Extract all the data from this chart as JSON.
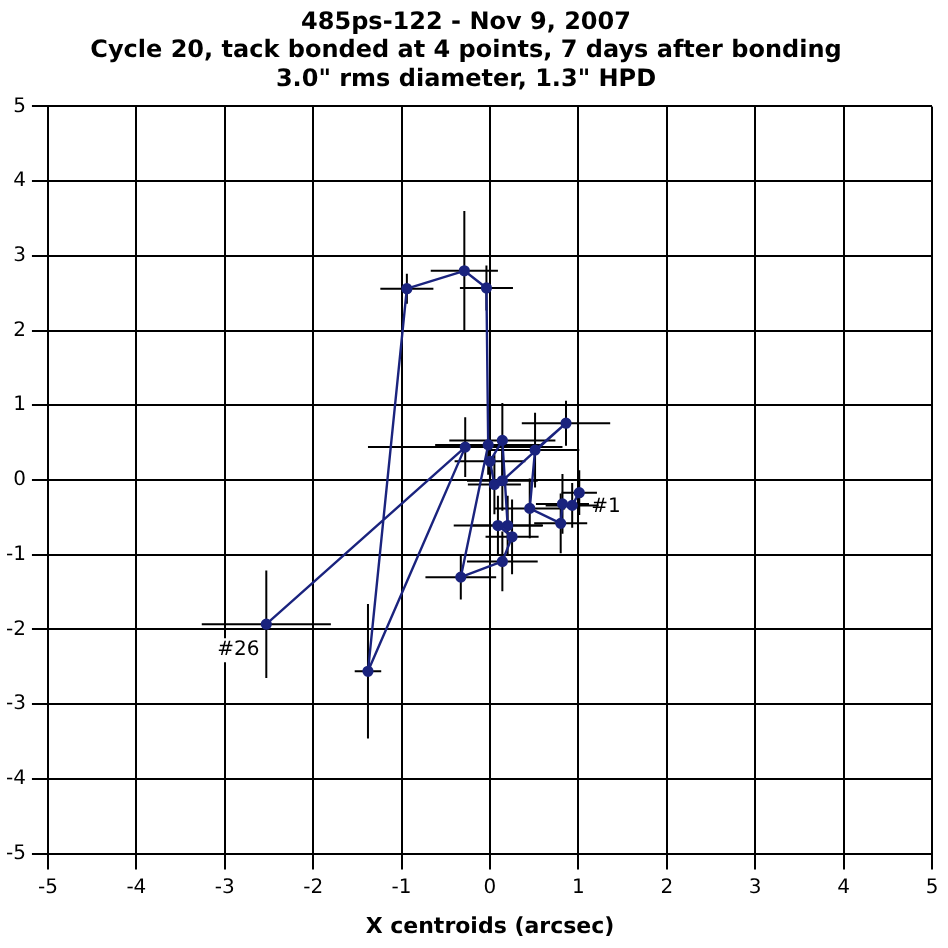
{
  "chart_data": {
    "type": "line",
    "title": [
      "485ps-122 - Nov 9, 2007",
      "Cycle 20, tack bonded at 4 points, 7 days after bonding",
      "3.0\" rms diameter, 1.3\" HPD"
    ],
    "xlabel": "X centroids (arcsec)",
    "series": [
      {
        "color": "#1a237e",
        "x": [
          1.01,
          0.93,
          0.82,
          0.8,
          0.45,
          0.51,
          0.86,
          0.14,
          0.05,
          0.0,
          0.14,
          0.2,
          0.09,
          0.25,
          0.14,
          -0.33,
          -0.02,
          -0.04,
          -0.29,
          -0.94,
          -1.38,
          -0.28,
          -2.53
        ],
        "values": [
          -0.17,
          -0.34,
          -0.32,
          -0.58,
          -0.38,
          0.4,
          0.76,
          -0.01,
          -0.06,
          0.25,
          0.53,
          -0.61,
          -0.61,
          -0.76,
          -1.09,
          -1.3,
          0.47,
          2.57,
          2.8,
          2.56,
          -2.56,
          0.44,
          -1.93
        ],
        "xerrors": [
          0.2,
          0.3,
          0.3,
          0.3,
          0.4,
          0.5,
          0.5,
          0.4,
          0.3,
          0.4,
          0.6,
          0.4,
          0.5,
          0.3,
          0.4,
          0.4,
          0.6,
          0.3,
          0.38,
          0.3,
          0.15,
          1.1,
          0.73
        ],
        "errors": [
          0.3,
          0.3,
          0.4,
          0.4,
          0.4,
          0.5,
          0.3,
          0.4,
          0.4,
          0.4,
          0.5,
          0.4,
          0.4,
          0.5,
          0.4,
          0.3,
          0.4,
          0.3,
          0.8,
          0.2,
          0.9,
          0.4,
          0.72
        ]
      }
    ],
    "annotations": [
      {
        "text": "#1",
        "x": 1.01,
        "y": -0.17
      },
      {
        "text": "#26",
        "x": -2.53,
        "y": -1.93
      }
    ],
    "xlim": [
      -5,
      5
    ],
    "ylim": [
      -5,
      5
    ],
    "xticks": [
      -5,
      -4,
      -3,
      -2,
      -1,
      0,
      1,
      2,
      3,
      4,
      5
    ],
    "yticks": [
      -5,
      -4,
      -3,
      -2,
      -1,
      0,
      1,
      2,
      3,
      4,
      5
    ],
    "grid": true,
    "marker": "circle",
    "line_style": "solid",
    "legend": false
  }
}
